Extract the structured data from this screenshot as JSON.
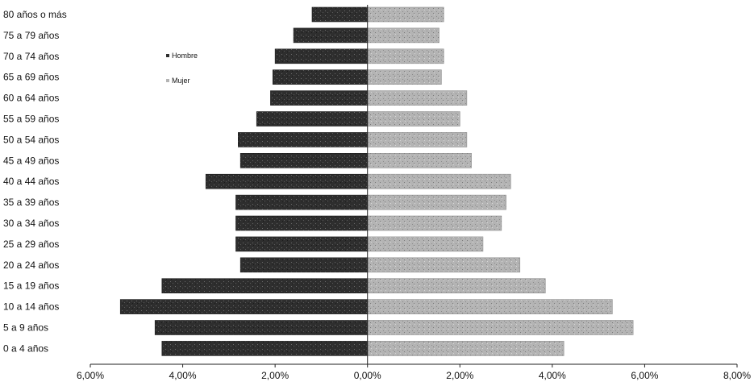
{
  "chart_data": {
    "type": "bar",
    "orientation": "horizontal",
    "layout": "population-pyramid",
    "categories": [
      "80 años o más",
      "75 a 79 años",
      "70 a 74 años",
      "65 a 69 años",
      "60 a 64 años",
      "55 a 59 años",
      "50 a 54 años",
      "45 a 49 años",
      "40 a 44 años",
      "35 a 39 años",
      "30 a 34 años",
      "25 a 29 años",
      "20 a 24 años",
      "15 a 19 años",
      "10 a 14 años",
      "5 a 9 años",
      "0 a 4 años"
    ],
    "series": [
      {
        "name": "Hombre",
        "color": "#2e2e2e",
        "side": "left",
        "values": [
          1.2,
          1.6,
          2.0,
          2.05,
          2.1,
          2.4,
          2.8,
          2.75,
          3.5,
          2.85,
          2.85,
          2.85,
          2.75,
          4.45,
          5.35,
          4.6,
          4.45
        ]
      },
      {
        "name": "Mujer",
        "color": "#b4b4b4",
        "side": "right",
        "values": [
          1.65,
          1.55,
          1.65,
          1.6,
          2.15,
          2.0,
          2.15,
          2.25,
          3.1,
          3.0,
          2.9,
          2.5,
          3.3,
          3.85,
          5.3,
          5.75,
          4.25
        ]
      }
    ],
    "x_ticks": [
      "6,00%",
      "4,00%",
      "2,00%",
      "0,00%",
      "2,00%",
      "4,00%",
      "6,00%",
      "8,00%"
    ],
    "x_tick_values": [
      -6,
      -4,
      -2,
      0,
      2,
      4,
      6,
      8
    ],
    "xlim": [
      -6,
      8
    ],
    "legend": {
      "placement": "top-left",
      "entries": [
        "Hombre",
        "Mujer"
      ],
      "marker": "▪"
    },
    "grid": false
  }
}
